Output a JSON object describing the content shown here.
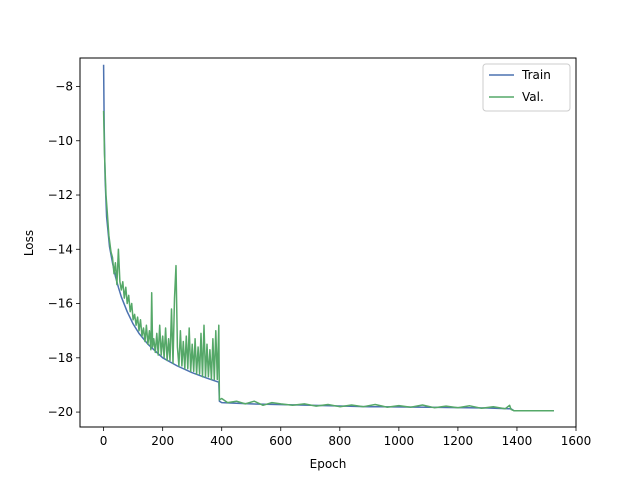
{
  "chart_data": {
    "type": "line",
    "title": "",
    "xlabel": "Epoch",
    "ylabel": "Loss",
    "xlim": [
      -80,
      1600
    ],
    "ylim": [
      -20.55,
      -6.95
    ],
    "xticks": [
      0,
      200,
      400,
      600,
      800,
      1000,
      1200,
      1400,
      1600
    ],
    "xtick_labels": [
      "0",
      "200",
      "400",
      "600",
      "800",
      "1000",
      "1200",
      "1400",
      "1600"
    ],
    "yticks": [
      -8,
      -10,
      -12,
      -14,
      -16,
      -18,
      -20
    ],
    "ytick_labels": [
      "−8",
      "−10",
      "−12",
      "−14",
      "−16",
      "−18",
      "−20"
    ],
    "grid": false,
    "legend_position": "top-right",
    "series": [
      {
        "name": "Train",
        "color": "#4c72b0",
        "points": [
          [
            0,
            -7.2
          ],
          [
            2,
            -9.5
          ],
          [
            5,
            -11.4
          ],
          [
            10,
            -12.8
          ],
          [
            20,
            -13.9
          ],
          [
            30,
            -14.5
          ],
          [
            40,
            -15.0
          ],
          [
            50,
            -15.4
          ],
          [
            60,
            -15.75
          ],
          [
            80,
            -16.3
          ],
          [
            100,
            -16.75
          ],
          [
            120,
            -17.1
          ],
          [
            150,
            -17.5
          ],
          [
            180,
            -17.8
          ],
          [
            200,
            -18.0
          ],
          [
            250,
            -18.3
          ],
          [
            300,
            -18.55
          ],
          [
            350,
            -18.75
          ],
          [
            390,
            -18.9
          ],
          [
            392,
            -19.6
          ],
          [
            400,
            -19.65
          ],
          [
            500,
            -19.7
          ],
          [
            700,
            -19.75
          ],
          [
            900,
            -19.8
          ],
          [
            1100,
            -19.82
          ],
          [
            1300,
            -19.85
          ],
          [
            1380,
            -19.88
          ],
          [
            1390,
            -19.95
          ],
          [
            1525,
            -19.95
          ]
        ]
      },
      {
        "name": "Val.",
        "color": "#55a868",
        "points": [
          [
            0,
            -8.9
          ],
          [
            3,
            -10.5
          ],
          [
            8,
            -12.0
          ],
          [
            12,
            -12.6
          ],
          [
            18,
            -13.5
          ],
          [
            25,
            -14.1
          ],
          [
            30,
            -14.3
          ],
          [
            35,
            -14.9
          ],
          [
            40,
            -14.5
          ],
          [
            45,
            -15.3
          ],
          [
            50,
            -14.0
          ],
          [
            55,
            -15.2
          ],
          [
            60,
            -15.5
          ],
          [
            65,
            -15.2
          ],
          [
            70,
            -15.8
          ],
          [
            75,
            -15.4
          ],
          [
            80,
            -16.0
          ],
          [
            85,
            -15.7
          ],
          [
            90,
            -16.3
          ],
          [
            95,
            -16.0
          ],
          [
            100,
            -16.6
          ],
          [
            105,
            -16.4
          ],
          [
            110,
            -16.8
          ],
          [
            115,
            -16.5
          ],
          [
            120,
            -17.0
          ],
          [
            125,
            -16.6
          ],
          [
            130,
            -17.2
          ],
          [
            135,
            -16.9
          ],
          [
            140,
            -17.4
          ],
          [
            145,
            -16.8
          ],
          [
            150,
            -17.5
          ],
          [
            155,
            -17.0
          ],
          [
            160,
            -17.7
          ],
          [
            163,
            -15.6
          ],
          [
            166,
            -17.6
          ],
          [
            170,
            -17.3
          ],
          [
            175,
            -17.8
          ],
          [
            180,
            -17.1
          ],
          [
            185,
            -17.9
          ],
          [
            190,
            -16.8
          ],
          [
            195,
            -17.9
          ],
          [
            200,
            -17.2
          ],
          [
            205,
            -18.0
          ],
          [
            210,
            -16.9
          ],
          [
            215,
            -18.1
          ],
          [
            220,
            -17.3
          ],
          [
            225,
            -18.1
          ],
          [
            230,
            -16.2
          ],
          [
            235,
            -18.2
          ],
          [
            240,
            -15.8
          ],
          [
            245,
            -14.6
          ],
          [
            250,
            -17.6
          ],
          [
            255,
            -18.3
          ],
          [
            260,
            -17.0
          ],
          [
            265,
            -18.3
          ],
          [
            270,
            -17.4
          ],
          [
            275,
            -18.4
          ],
          [
            280,
            -17.2
          ],
          [
            285,
            -18.4
          ],
          [
            290,
            -16.9
          ],
          [
            295,
            -18.5
          ],
          [
            300,
            -17.5
          ],
          [
            305,
            -18.5
          ],
          [
            310,
            -17.3
          ],
          [
            315,
            -18.6
          ],
          [
            320,
            -17.6
          ],
          [
            325,
            -18.6
          ],
          [
            330,
            -17.1
          ],
          [
            335,
            -18.7
          ],
          [
            340,
            -16.8
          ],
          [
            345,
            -18.7
          ],
          [
            350,
            -17.5
          ],
          [
            355,
            -18.7
          ],
          [
            360,
            -17.7
          ],
          [
            365,
            -18.8
          ],
          [
            370,
            -17.3
          ],
          [
            375,
            -18.8
          ],
          [
            380,
            -17.0
          ],
          [
            385,
            -18.8
          ],
          [
            390,
            -16.8
          ],
          [
            392,
            -19.55
          ],
          [
            400,
            -19.5
          ],
          [
            420,
            -19.65
          ],
          [
            450,
            -19.6
          ],
          [
            480,
            -19.7
          ],
          [
            510,
            -19.6
          ],
          [
            540,
            -19.75
          ],
          [
            570,
            -19.65
          ],
          [
            600,
            -19.7
          ],
          [
            640,
            -19.75
          ],
          [
            680,
            -19.7
          ],
          [
            720,
            -19.78
          ],
          [
            760,
            -19.72
          ],
          [
            800,
            -19.8
          ],
          [
            840,
            -19.74
          ],
          [
            880,
            -19.8
          ],
          [
            920,
            -19.72
          ],
          [
            960,
            -19.82
          ],
          [
            1000,
            -19.76
          ],
          [
            1040,
            -19.82
          ],
          [
            1080,
            -19.74
          ],
          [
            1120,
            -19.84
          ],
          [
            1160,
            -19.78
          ],
          [
            1200,
            -19.84
          ],
          [
            1240,
            -19.77
          ],
          [
            1280,
            -19.86
          ],
          [
            1320,
            -19.8
          ],
          [
            1360,
            -19.88
          ],
          [
            1375,
            -19.75
          ],
          [
            1380,
            -19.9
          ],
          [
            1390,
            -19.95
          ],
          [
            1525,
            -19.95
          ]
        ]
      }
    ]
  }
}
